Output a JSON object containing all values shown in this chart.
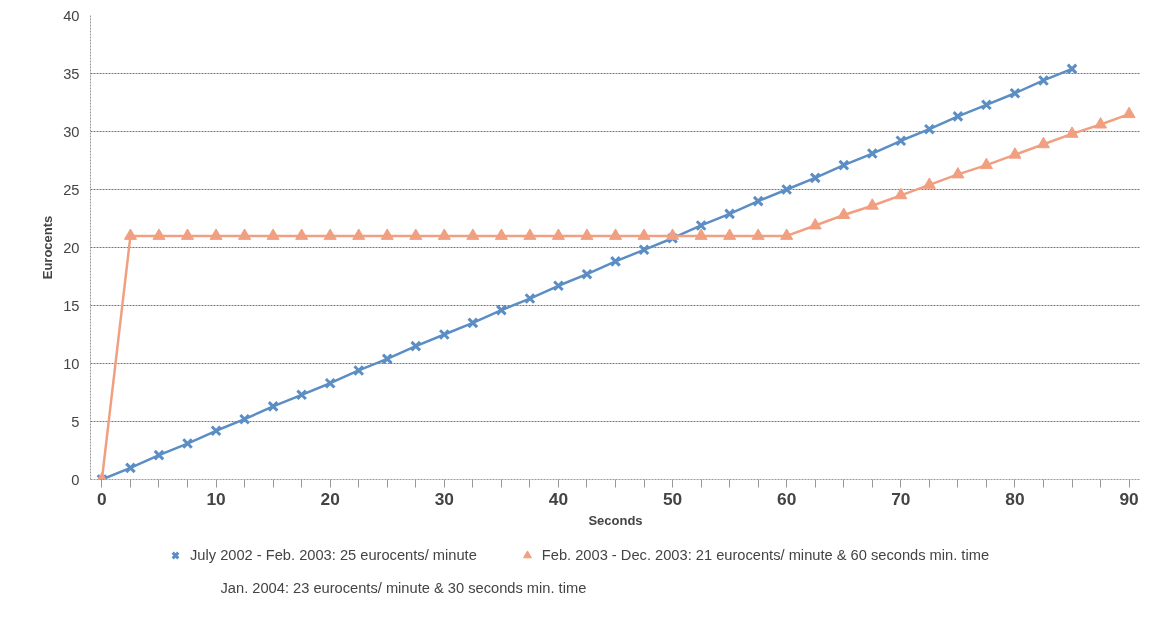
{
  "chart_data": {
    "type": "line",
    "xlabel": "Seconds",
    "ylabel": "Eurocents",
    "xlim": [
      -1,
      91
    ],
    "ylim": [
      0,
      40
    ],
    "xticks": [
      0,
      {
        "value": 2.5,
        "label": null
      },
      {
        "value": 5,
        "label": null
      },
      {
        "value": 7.5,
        "label": null
      },
      10,
      {
        "value": 12.5,
        "label": null
      },
      {
        "value": 15,
        "label": null
      },
      {
        "value": 17.5,
        "label": null
      },
      20,
      {
        "value": 22.5,
        "label": null
      },
      {
        "value": 25,
        "label": null
      },
      {
        "value": 27.5,
        "label": null
      },
      30,
      {
        "value": 32.5,
        "label": null
      },
      {
        "value": 35,
        "label": null
      },
      {
        "value": 37.5,
        "label": null
      },
      40,
      {
        "value": 42.5,
        "label": null
      },
      {
        "value": 45,
        "label": null
      },
      {
        "value": 47.5,
        "label": null
      },
      50,
      {
        "value": 52.5,
        "label": null
      },
      {
        "value": 55,
        "label": null
      },
      {
        "value": 57.5,
        "label": null
      },
      60,
      {
        "value": 62.5,
        "label": null
      },
      {
        "value": 65,
        "label": null
      },
      {
        "value": 67.5,
        "label": null
      },
      70,
      {
        "value": 72.5,
        "label": null
      },
      {
        "value": 75,
        "label": null
      },
      {
        "value": 77.5,
        "label": null
      },
      80,
      {
        "value": 82.5,
        "label": null
      },
      {
        "value": 85,
        "label": null
      },
      {
        "value": 87.5,
        "label": null
      },
      90
    ],
    "yticks": [
      0,
      5,
      10,
      15,
      20,
      25,
      30,
      35,
      40
    ],
    "grid": "y",
    "legend": "bottom",
    "series": [
      {
        "name": "July 2002 - Feb. 2003: 25 eurocents/ minute",
        "color": "#5b8ec4",
        "marker": "cross",
        "x": [
          0,
          2.5,
          5,
          7.5,
          10,
          12.5,
          15,
          17.5,
          20,
          22.5,
          25,
          27.5,
          30,
          32.5,
          35,
          37.5,
          40,
          42.5,
          45,
          47.5,
          50,
          52.5,
          55,
          57.5,
          60,
          62.5,
          65,
          67.5,
          70,
          72.5,
          75,
          77.5,
          80,
          82.5,
          85
        ],
        "values": [
          0,
          1.0,
          2.1,
          3.1,
          4.2,
          5.2,
          6.3,
          7.3,
          8.3,
          9.4,
          10.4,
          11.5,
          12.5,
          13.5,
          14.6,
          15.6,
          16.7,
          17.7,
          18.8,
          19.8,
          20.8,
          21.9,
          22.9,
          24.0,
          25.0,
          26.0,
          27.1,
          28.1,
          29.2,
          30.2,
          31.3,
          32.3,
          33.3,
          34.4,
          35.4
        ]
      },
      {
        "name": "Feb. 2003 - Dec. 2003: 21 eurocents/ minute & 60 seconds min. time",
        "color": "#f0a080",
        "marker": "triangle",
        "x": [
          0,
          2.5,
          5,
          7.5,
          10,
          12.5,
          15,
          17.5,
          20,
          22.5,
          25,
          27.5,
          30,
          32.5,
          35,
          37.5,
          40,
          42.5,
          45,
          47.5,
          50,
          52.5,
          55,
          57.5,
          60,
          62.5,
          65,
          67.5,
          70,
          72.5,
          75,
          77.5,
          80,
          82.5,
          85,
          87.5,
          90
        ],
        "values": [
          0,
          21,
          21,
          21,
          21,
          21,
          21,
          21,
          21,
          21,
          21,
          21,
          21,
          21,
          21,
          21,
          21,
          21,
          21,
          21,
          21,
          21,
          21,
          21,
          21,
          21.9,
          22.8,
          23.6,
          24.5,
          25.4,
          26.3,
          27.1,
          28.0,
          28.9,
          29.8,
          30.6,
          31.5
        ]
      }
    ],
    "annotations": [
      "Jan. 2004: 23 eurocents/ minute & 30 seconds min. time"
    ]
  }
}
